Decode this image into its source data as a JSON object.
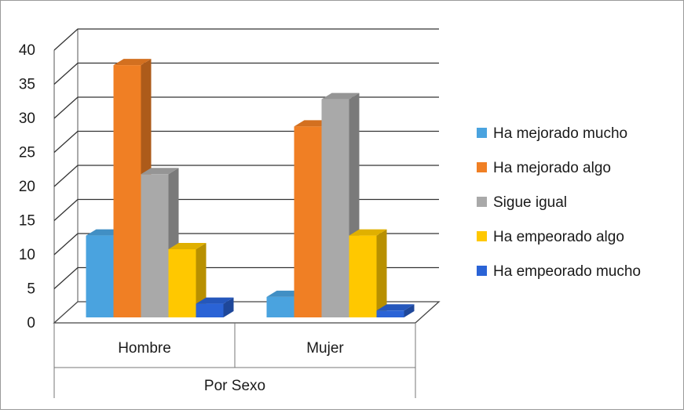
{
  "chart_data": {
    "type": "bar",
    "style": "3d-clustered-column",
    "title": "",
    "xlabel": "Por Sexo",
    "ylabel": "",
    "ylim": [
      0,
      40
    ],
    "yticks": [
      0,
      5,
      10,
      15,
      20,
      25,
      30,
      35,
      40
    ],
    "ytick_labels": [
      "0",
      "5",
      "10",
      "15",
      "20",
      "25",
      "30",
      "35",
      "40"
    ],
    "grid": true,
    "legend_position": "right",
    "categories": [
      "Hombre",
      "Mujer"
    ],
    "series": [
      {
        "name": "Ha mejorado mucho",
        "color": "#4aa3df",
        "values": [
          12,
          3
        ]
      },
      {
        "name": "Ha mejorado algo",
        "color": "#f07f24",
        "values": [
          37,
          28
        ]
      },
      {
        "name": "Sigue igual",
        "color": "#a9a9a9",
        "values": [
          21,
          32
        ]
      },
      {
        "name": "Ha empeorado algo",
        "color": "#ffc800",
        "values": [
          10,
          12
        ]
      },
      {
        "name": "Ha empeorado mucho",
        "color": "#2a63d6",
        "values": [
          2,
          1
        ]
      }
    ]
  }
}
